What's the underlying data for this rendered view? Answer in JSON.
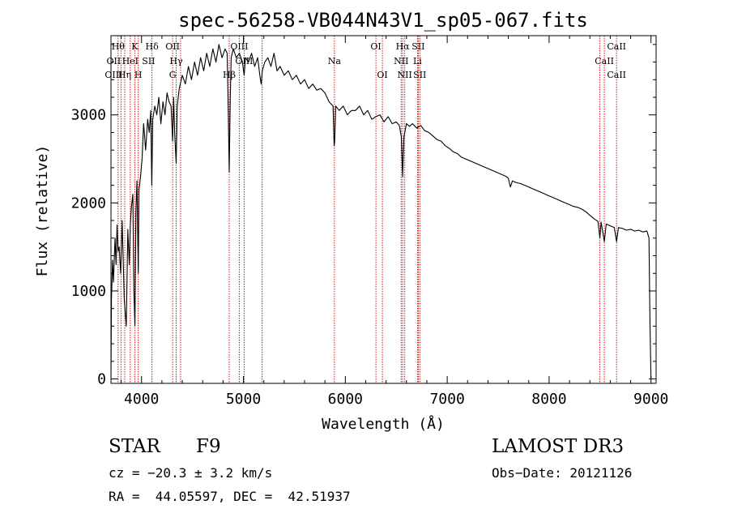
{
  "chart_data": {
    "type": "line",
    "title": "spec-56258-VB044N43V1_sp05-067.fits",
    "xlabel": "Wavelength (Å)",
    "ylabel": "Flux (relative)",
    "xlim": [
      3700,
      9050
    ],
    "ylim": [
      -50,
      3900
    ],
    "xticks": [
      4000,
      5000,
      6000,
      7000,
      8000,
      9000
    ],
    "yticks": [
      0,
      1000,
      2000,
      3000
    ],
    "grid": false,
    "series": [
      {
        "color": "#000000",
        "points": [
          [
            3700,
            20
          ],
          [
            3705,
            900
          ],
          [
            3715,
            1350
          ],
          [
            3725,
            1100
          ],
          [
            3740,
            1600
          ],
          [
            3750,
            1300
          ],
          [
            3760,
            1750
          ],
          [
            3770,
            1450
          ],
          [
            3780,
            1500
          ],
          [
            3795,
            1200
          ],
          [
            3810,
            1800
          ],
          [
            3830,
            900
          ],
          [
            3850,
            600
          ],
          [
            3865,
            1700
          ],
          [
            3880,
            1300
          ],
          [
            3890,
            1750
          ],
          [
            3900,
            1950
          ],
          [
            3915,
            2100
          ],
          [
            3925,
            1000
          ],
          [
            3935,
            600
          ],
          [
            3945,
            1900
          ],
          [
            3955,
            2250
          ],
          [
            3968,
            1200
          ],
          [
            3975,
            2150
          ],
          [
            3990,
            2300
          ],
          [
            4005,
            2500
          ],
          [
            4020,
            2900
          ],
          [
            4040,
            2600
          ],
          [
            4060,
            2950
          ],
          [
            4075,
            2800
          ],
          [
            4090,
            3050
          ],
          [
            4101,
            2200
          ],
          [
            4110,
            2950
          ],
          [
            4130,
            3100
          ],
          [
            4150,
            3000
          ],
          [
            4170,
            3200
          ],
          [
            4190,
            2900
          ],
          [
            4210,
            3150
          ],
          [
            4230,
            3000
          ],
          [
            4250,
            3250
          ],
          [
            4270,
            3150
          ],
          [
            4290,
            3100
          ],
          [
            4305,
            2700
          ],
          [
            4315,
            3200
          ],
          [
            4325,
            2800
          ],
          [
            4340,
            2450
          ],
          [
            4350,
            3100
          ],
          [
            4370,
            3300
          ],
          [
            4400,
            3450
          ],
          [
            4430,
            3350
          ],
          [
            4460,
            3550
          ],
          [
            4490,
            3400
          ],
          [
            4520,
            3600
          ],
          [
            4550,
            3450
          ],
          [
            4580,
            3650
          ],
          [
            4610,
            3500
          ],
          [
            4640,
            3700
          ],
          [
            4670,
            3550
          ],
          [
            4700,
            3750
          ],
          [
            4730,
            3600
          ],
          [
            4760,
            3800
          ],
          [
            4790,
            3650
          ],
          [
            4820,
            3750
          ],
          [
            4840,
            3700
          ],
          [
            4850,
            3100
          ],
          [
            4861,
            2350
          ],
          [
            4870,
            3150
          ],
          [
            4880,
            3650
          ],
          [
            4900,
            3750
          ],
          [
            4930,
            3650
          ],
          [
            4960,
            3700
          ],
          [
            4990,
            3600
          ],
          [
            5007,
            3450
          ],
          [
            5020,
            3650
          ],
          [
            5050,
            3600
          ],
          [
            5080,
            3700
          ],
          [
            5110,
            3550
          ],
          [
            5140,
            3650
          ],
          [
            5167,
            3400
          ],
          [
            5175,
            3350
          ],
          [
            5185,
            3500
          ],
          [
            5210,
            3600
          ],
          [
            5240,
            3650
          ],
          [
            5270,
            3550
          ],
          [
            5300,
            3700
          ],
          [
            5330,
            3500
          ],
          [
            5360,
            3550
          ],
          [
            5400,
            3450
          ],
          [
            5440,
            3500
          ],
          [
            5480,
            3400
          ],
          [
            5520,
            3450
          ],
          [
            5560,
            3350
          ],
          [
            5600,
            3400
          ],
          [
            5640,
            3300
          ],
          [
            5680,
            3350
          ],
          [
            5720,
            3280
          ],
          [
            5760,
            3300
          ],
          [
            5800,
            3250
          ],
          [
            5840,
            3150
          ],
          [
            5880,
            3100
          ],
          [
            5890,
            2650
          ],
          [
            5896,
            2700
          ],
          [
            5905,
            3100
          ],
          [
            5940,
            3050
          ],
          [
            5980,
            3100
          ],
          [
            6020,
            3000
          ],
          [
            6060,
            3050
          ],
          [
            6100,
            3050
          ],
          [
            6140,
            3100
          ],
          [
            6180,
            3000
          ],
          [
            6220,
            3050
          ],
          [
            6260,
            2950
          ],
          [
            6300,
            2980
          ],
          [
            6340,
            3000
          ],
          [
            6380,
            2920
          ],
          [
            6420,
            2980
          ],
          [
            6460,
            2900
          ],
          [
            6500,
            2920
          ],
          [
            6530,
            2880
          ],
          [
            6550,
            2750
          ],
          [
            6563,
            2300
          ],
          [
            6575,
            2750
          ],
          [
            6600,
            2900
          ],
          [
            6630,
            2870
          ],
          [
            6660,
            2900
          ],
          [
            6700,
            2850
          ],
          [
            6740,
            2880
          ],
          [
            6780,
            2820
          ],
          [
            6820,
            2800
          ],
          [
            6860,
            2760
          ],
          [
            6900,
            2720
          ],
          [
            6940,
            2700
          ],
          [
            6980,
            2650
          ],
          [
            7020,
            2620
          ],
          [
            7060,
            2580
          ],
          [
            7100,
            2560
          ],
          [
            7140,
            2520
          ],
          [
            7180,
            2500
          ],
          [
            7220,
            2480
          ],
          [
            7260,
            2460
          ],
          [
            7300,
            2440
          ],
          [
            7340,
            2420
          ],
          [
            7380,
            2400
          ],
          [
            7420,
            2380
          ],
          [
            7460,
            2360
          ],
          [
            7500,
            2340
          ],
          [
            7540,
            2320
          ],
          [
            7580,
            2300
          ],
          [
            7600,
            2280
          ],
          [
            7620,
            2180
          ],
          [
            7640,
            2250
          ],
          [
            7680,
            2230
          ],
          [
            7720,
            2220
          ],
          [
            7760,
            2200
          ],
          [
            7800,
            2180
          ],
          [
            7840,
            2160
          ],
          [
            7880,
            2140
          ],
          [
            7920,
            2120
          ],
          [
            7960,
            2100
          ],
          [
            8000,
            2080
          ],
          [
            8040,
            2060
          ],
          [
            8080,
            2040
          ],
          [
            8120,
            2020
          ],
          [
            8160,
            2000
          ],
          [
            8200,
            1980
          ],
          [
            8240,
            1960
          ],
          [
            8280,
            1950
          ],
          [
            8320,
            1930
          ],
          [
            8360,
            1900
          ],
          [
            8400,
            1860
          ],
          [
            8440,
            1820
          ],
          [
            8480,
            1790
          ],
          [
            8498,
            1600
          ],
          [
            8510,
            1780
          ],
          [
            8542,
            1560
          ],
          [
            8560,
            1760
          ],
          [
            8600,
            1740
          ],
          [
            8640,
            1720
          ],
          [
            8662,
            1560
          ],
          [
            8680,
            1720
          ],
          [
            8720,
            1710
          ],
          [
            8760,
            1690
          ],
          [
            8800,
            1700
          ],
          [
            8840,
            1680
          ],
          [
            8880,
            1690
          ],
          [
            8920,
            1670
          ],
          [
            8960,
            1680
          ],
          [
            8980,
            1600
          ],
          [
            8990,
            600
          ],
          [
            9000,
            0
          ]
        ]
      }
    ],
    "line_markers": {
      "color": "#cc0000",
      "wavelengths": [
        3770,
        3798,
        3835,
        3889,
        3934,
        3968,
        4102,
        4305,
        4340,
        4384,
        4861,
        4959,
        5007,
        5183,
        5893,
        6300,
        6364,
        6548,
        6563,
        6583,
        6708,
        6716,
        6731,
        8498,
        8542,
        8662
      ]
    },
    "line_labels": [
      {
        "text": "Hθ",
        "wl": 3770,
        "row": 0
      },
      {
        "text": "K",
        "wl": 3934,
        "row": 0
      },
      {
        "text": "Hδ",
        "wl": 4102,
        "row": 0
      },
      {
        "text": "OII",
        "wl": 4305,
        "row": 0
      },
      {
        "text": "OIII",
        "wl": 4959,
        "row": 0
      },
      {
        "text": "OI",
        "wl": 6300,
        "row": 0
      },
      {
        "text": "Hα",
        "wl": 6563,
        "row": 0
      },
      {
        "text": "SII",
        "wl": 6716,
        "row": 0
      },
      {
        "text": "CaII",
        "wl": 8662,
        "row": 0
      },
      {
        "text": "OII",
        "wl": 3727,
        "row": 1
      },
      {
        "text": "HeI",
        "wl": 3889,
        "row": 1
      },
      {
        "text": "SII",
        "wl": 4069,
        "row": 1
      },
      {
        "text": "Hγ",
        "wl": 4340,
        "row": 1
      },
      {
        "text": "OIII",
        "wl": 5007,
        "row": 1
      },
      {
        "text": "Na",
        "wl": 5893,
        "row": 1
      },
      {
        "text": "NII",
        "wl": 6548,
        "row": 1
      },
      {
        "text": "Li",
        "wl": 6708,
        "row": 1
      },
      {
        "text": "CaII",
        "wl": 8542,
        "row": 1
      },
      {
        "text": "OIII",
        "wl": 3727,
        "row": 2
      },
      {
        "text": "Hη",
        "wl": 3835,
        "row": 2
      },
      {
        "text": "H",
        "wl": 3968,
        "row": 2
      },
      {
        "text": "G",
        "wl": 4305,
        "row": 2
      },
      {
        "text": "Hβ",
        "wl": 4861,
        "row": 2
      },
      {
        "text": "OI",
        "wl": 6364,
        "row": 2
      },
      {
        "text": "NII",
        "wl": 6583,
        "row": 2
      },
      {
        "text": "SII",
        "wl": 6731,
        "row": 2
      },
      {
        "text": "CaII",
        "wl": 8662,
        "row": 2
      }
    ]
  },
  "info": {
    "object_class": "STAR",
    "subclass": "F9",
    "survey": "LAMOST DR3",
    "cz": "cz = −20.3 ± 3.2 km/s",
    "obs_date": "Obs−Date: 20121126",
    "coords": "RA =  44.05597, DEC =  42.51937"
  }
}
